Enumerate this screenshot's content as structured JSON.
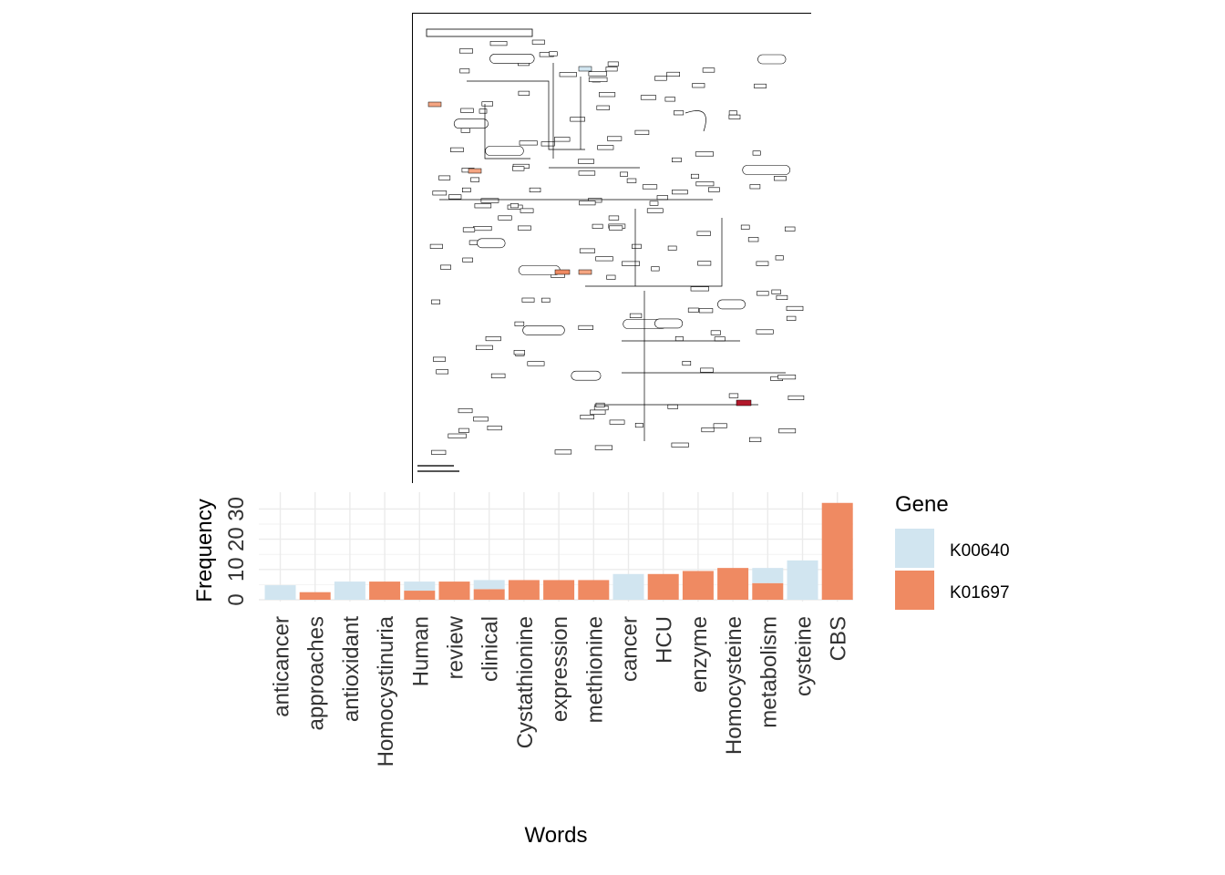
{
  "chart_data": {
    "type": "bar",
    "layout": "stacked",
    "xlabel": "Words",
    "ylabel": "Frequency",
    "yticks": [
      0,
      10,
      20,
      30
    ],
    "ylim": [
      0,
      33
    ],
    "categories": [
      "anticancer",
      "approaches",
      "antioxidant",
      "Homocystinuria",
      "Human",
      "review",
      "clinical",
      "Cystathionine",
      "expression",
      "methionine",
      "cancer",
      "HCU",
      "enzyme",
      "Homocysteine",
      "metabolism",
      "cysteine",
      "CBS"
    ],
    "series": [
      {
        "name": "K01697",
        "color": "#EF8A62",
        "values": [
          0,
          2.5,
          0,
          6,
          3,
          6,
          3.5,
          6.5,
          6.5,
          6.5,
          0,
          8.5,
          9.5,
          10.5,
          5.5,
          0,
          32
        ]
      },
      {
        "name": "K00640",
        "color": "#D1E5F0",
        "values": [
          4.8,
          0,
          6,
          0,
          3,
          0,
          3,
          0,
          0,
          0,
          8.5,
          0,
          0,
          0,
          5,
          13,
          0
        ]
      }
    ],
    "legend": {
      "title": "Gene",
      "position": "right",
      "entries": [
        "K00640",
        "K01697"
      ]
    },
    "grid": true
  },
  "pathway_image": {
    "highlight_colors": [
      "#F4A582",
      "#EF8A62",
      "#B2182B",
      "#D1E5F0"
    ]
  }
}
